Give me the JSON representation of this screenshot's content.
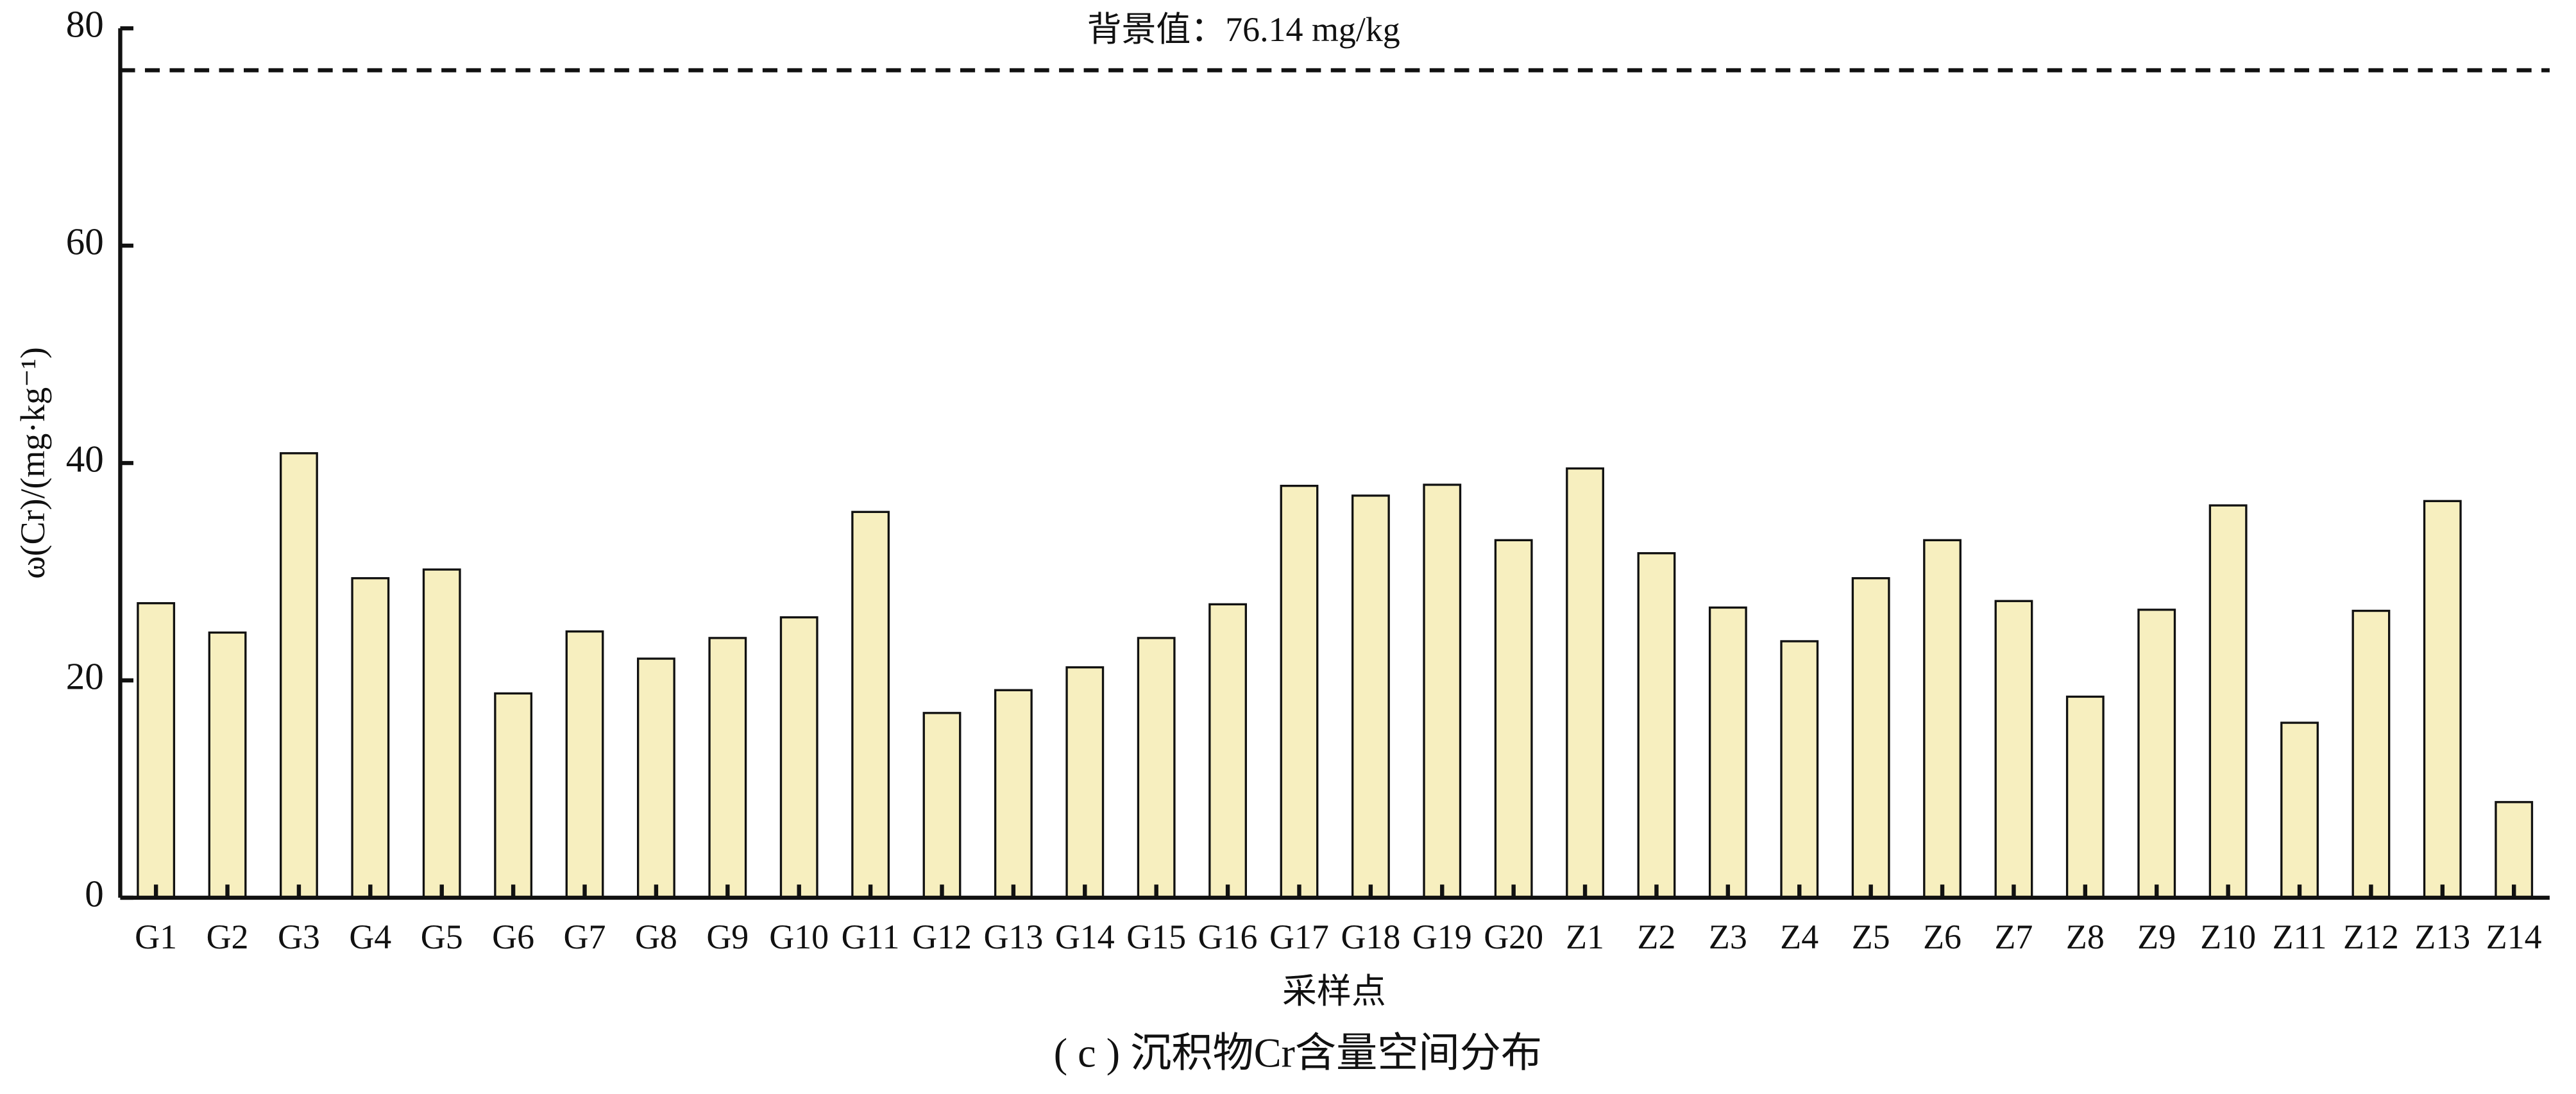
{
  "chart_data": {
    "type": "bar",
    "caption": "( c ) 沉积物Cr含量空间分布",
    "x_label": "采样点",
    "y_label": "ω(Cr)/(mg·kg⁻¹)",
    "categories": [
      "G1",
      "G2",
      "G3",
      "G4",
      "G5",
      "G6",
      "G7",
      "G8",
      "G9",
      "G10",
      "G11",
      "G12",
      "G13",
      "G14",
      "G15",
      "G16",
      "G17",
      "G18",
      "G19",
      "G20",
      "Z1",
      "Z2",
      "Z3",
      "Z4",
      "Z5",
      "Z6",
      "Z7",
      "Z8",
      "Z9",
      "Z10",
      "Z11",
      "Z12",
      "Z13",
      "Z14"
    ],
    "values": [
      27.1,
      24.4,
      40.9,
      29.4,
      30.2,
      18.8,
      24.5,
      22.0,
      23.9,
      25.8,
      35.5,
      17.0,
      19.1,
      21.2,
      23.9,
      27.0,
      37.9,
      37.0,
      38.0,
      32.9,
      39.5,
      31.7,
      26.7,
      23.6,
      29.4,
      32.9,
      27.3,
      18.5,
      26.5,
      36.1,
      16.1,
      26.4,
      36.5,
      8.8
    ],
    "color": "#f7efbf",
    "ylim": [
      0,
      80
    ],
    "yticks": [
      0,
      20,
      40,
      60,
      80
    ],
    "reference_line": {
      "value": 76.14,
      "label": "背景值：76.14 mg/kg"
    }
  }
}
